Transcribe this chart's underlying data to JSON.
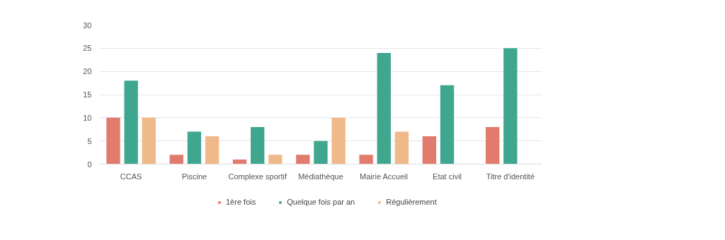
{
  "chart_data": {
    "type": "bar",
    "categories": [
      "CCAS",
      "Piscine",
      "Complexe sportif",
      "Médiathèque",
      "Mairie Accueil",
      "Etat civil",
      "Titre d'identité"
    ],
    "series": [
      {
        "name": "1ère fois",
        "color": "#e07b6e",
        "values": [
          10,
          2,
          1,
          2,
          2,
          6,
          8
        ]
      },
      {
        "name": "Quelque fois par an",
        "color": "#3fa68f",
        "values": [
          18,
          7,
          8,
          5,
          24,
          17,
          25
        ]
      },
      {
        "name": "Régulièrement",
        "color": "#f0b98a",
        "values": [
          10,
          6,
          2,
          10,
          7,
          null,
          null
        ]
      }
    ],
    "ylim": [
      0,
      30
    ],
    "yticks": [
      0,
      5,
      10,
      15,
      20,
      25,
      30
    ],
    "grid": "y",
    "legend": "bottom"
  }
}
